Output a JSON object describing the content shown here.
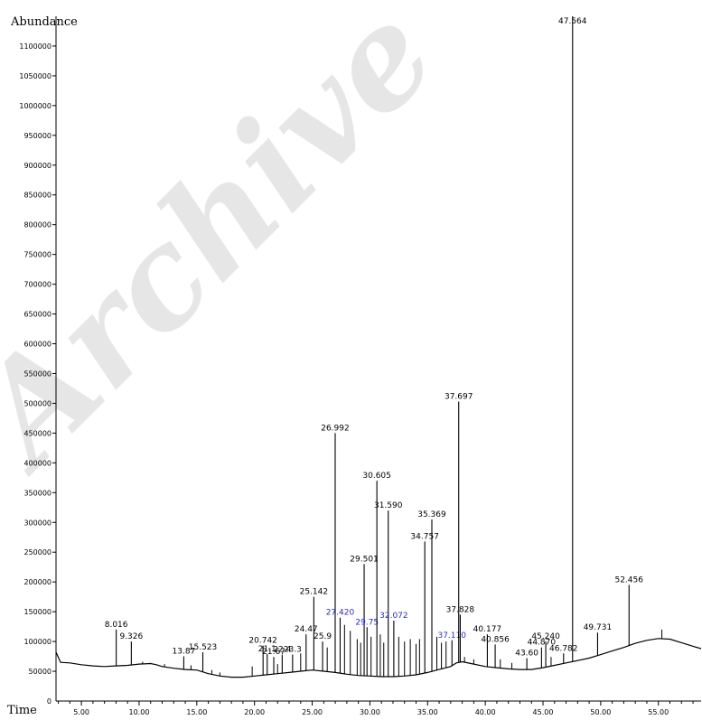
{
  "chart_data": {
    "type": "line",
    "ylabel": "Abundance",
    "xlabel": "Time",
    "xlim": [
      2.8,
      58.7
    ],
    "ylim": [
      0,
      1150000
    ],
    "y_ticks": [
      50000,
      100000,
      150000,
      200000,
      250000,
      300000,
      350000,
      400000,
      450000,
      500000,
      550000,
      600000,
      650000,
      700000,
      750000,
      800000,
      850000,
      900000,
      950000,
      1000000,
      1050000,
      1100000
    ],
    "y_tick_labels": [
      "50000",
      "100000",
      "150000",
      "200000",
      "250000",
      "300000",
      "350000",
      "400000",
      "450000",
      "500000",
      "550000",
      "600000",
      "650000",
      "700000",
      "750000",
      "800000",
      "850000",
      "900000",
      "950000",
      "1000000",
      "1050000",
      "1100000"
    ],
    "x_ticks": [
      5,
      10,
      15,
      20,
      25,
      30,
      35,
      40,
      45,
      50,
      55
    ],
    "x_tick_labels": [
      "5.00",
      "10.00",
      "15.00",
      "20.00",
      "25.00",
      "30.00",
      "35.00",
      "40.00",
      "45.00",
      "50.00",
      "55.00"
    ],
    "watermark": "Archive",
    "labeled_peaks": [
      {
        "x": 8.016,
        "y": 120000,
        "label": "8.016"
      },
      {
        "x": 9.326,
        "y": 100000,
        "label": "9.326"
      },
      {
        "x": 13.87,
        "y": 75000,
        "label": "13.87"
      },
      {
        "x": 15.523,
        "y": 82000,
        "label": "15.523"
      },
      {
        "x": 20.742,
        "y": 93000,
        "label": "20.742"
      },
      {
        "x": 21.1,
        "y": 79000,
        "label": "21.1"
      },
      {
        "x": 21.67,
        "y": 74000,
        "label": "21.67"
      },
      {
        "x": 22.4,
        "y": 78000,
        "label": "22.4"
      },
      {
        "x": 23.3,
        "y": 78000,
        "label": "23.3"
      },
      {
        "x": 24.47,
        "y": 112000,
        "label": "24.47"
      },
      {
        "x": 25.142,
        "y": 175000,
        "label": "25.142"
      },
      {
        "x": 25.9,
        "y": 100000,
        "label": "25.9"
      },
      {
        "x": 26.992,
        "y": 450000,
        "label": "26.992"
      },
      {
        "x": 27.42,
        "y": 140000,
        "label": "27.420"
      },
      {
        "x": 29.501,
        "y": 230000,
        "label": "29.501"
      },
      {
        "x": 29.75,
        "y": 124000,
        "label": "29.75"
      },
      {
        "x": 30.605,
        "y": 370000,
        "label": "30.605"
      },
      {
        "x": 31.59,
        "y": 320000,
        "label": "31.590"
      },
      {
        "x": 32.072,
        "y": 135000,
        "label": "32.072"
      },
      {
        "x": 34.757,
        "y": 268000,
        "label": "34.757"
      },
      {
        "x": 35.369,
        "y": 305000,
        "label": "35.369"
      },
      {
        "x": 37.11,
        "y": 102000,
        "label": "37.110"
      },
      {
        "x": 37.697,
        "y": 503000,
        "label": "37.697"
      },
      {
        "x": 37.828,
        "y": 145000,
        "label": "37.828"
      },
      {
        "x": 40.177,
        "y": 112000,
        "label": "40.177"
      },
      {
        "x": 40.856,
        "y": 95000,
        "label": "40.856"
      },
      {
        "x": 43.6,
        "y": 72000,
        "label": "43.60"
      },
      {
        "x": 44.87,
        "y": 90000,
        "label": "44.870"
      },
      {
        "x": 45.24,
        "y": 100000,
        "label": "45.240"
      },
      {
        "x": 46.782,
        "y": 80000,
        "label": "46.782"
      },
      {
        "x": 47.564,
        "y": 1150000,
        "label": "47.564"
      },
      {
        "x": 49.731,
        "y": 115000,
        "label": "49.731"
      },
      {
        "x": 52.456,
        "y": 195000,
        "label": "52.456"
      }
    ],
    "minor_peaks": [
      {
        "x": 10.3,
        "y": 66000
      },
      {
        "x": 11.0,
        "y": 64000
      },
      {
        "x": 12.2,
        "y": 62000
      },
      {
        "x": 14.5,
        "y": 60000
      },
      {
        "x": 16.3,
        "y": 52000
      },
      {
        "x": 17.0,
        "y": 48000
      },
      {
        "x": 19.8,
        "y": 58000
      },
      {
        "x": 22.0,
        "y": 62000
      },
      {
        "x": 24.0,
        "y": 80000
      },
      {
        "x": 26.3,
        "y": 90000
      },
      {
        "x": 27.8,
        "y": 128000
      },
      {
        "x": 28.3,
        "y": 118000
      },
      {
        "x": 28.9,
        "y": 104000
      },
      {
        "x": 29.2,
        "y": 98000
      },
      {
        "x": 30.1,
        "y": 108000
      },
      {
        "x": 30.9,
        "y": 112000
      },
      {
        "x": 31.2,
        "y": 98000
      },
      {
        "x": 32.5,
        "y": 108000
      },
      {
        "x": 33.0,
        "y": 100000
      },
      {
        "x": 33.5,
        "y": 104000
      },
      {
        "x": 34.0,
        "y": 96000
      },
      {
        "x": 34.3,
        "y": 104000
      },
      {
        "x": 35.8,
        "y": 108000
      },
      {
        "x": 36.2,
        "y": 98000
      },
      {
        "x": 36.6,
        "y": 100000
      },
      {
        "x": 38.2,
        "y": 74000
      },
      {
        "x": 39.0,
        "y": 70000
      },
      {
        "x": 41.3,
        "y": 70000
      },
      {
        "x": 42.3,
        "y": 64000
      },
      {
        "x": 45.7,
        "y": 74000
      },
      {
        "x": 51.5,
        "y": 88000
      },
      {
        "x": 55.3,
        "y": 120000
      }
    ],
    "baseline": [
      [
        2.8,
        82000
      ],
      [
        3.2,
        65000
      ],
      [
        4.0,
        64000
      ],
      [
        5.0,
        61000
      ],
      [
        6.0,
        59000
      ],
      [
        7.0,
        58000
      ],
      [
        8.0,
        59000
      ],
      [
        9.0,
        60000
      ],
      [
        10.0,
        62000
      ],
      [
        11.0,
        63000
      ],
      [
        11.5,
        61000
      ],
      [
        12.0,
        58000
      ],
      [
        13.0,
        55000
      ],
      [
        14.0,
        53000
      ],
      [
        15.0,
        52000
      ],
      [
        16.0,
        46000
      ],
      [
        17.0,
        42000
      ],
      [
        18.0,
        40000
      ],
      [
        19.0,
        40000
      ],
      [
        20.0,
        42000
      ],
      [
        21.0,
        44000
      ],
      [
        22.0,
        46000
      ],
      [
        23.0,
        48000
      ],
      [
        24.0,
        50000
      ],
      [
        25.0,
        52000
      ],
      [
        26.0,
        50000
      ],
      [
        27.0,
        48000
      ],
      [
        28.0,
        45000
      ],
      [
        29.0,
        43000
      ],
      [
        30.0,
        42000
      ],
      [
        31.0,
        41000
      ],
      [
        32.0,
        41000
      ],
      [
        33.0,
        42000
      ],
      [
        34.0,
        44000
      ],
      [
        35.0,
        48000
      ],
      [
        36.0,
        53000
      ],
      [
        37.0,
        58000
      ],
      [
        37.5,
        64000
      ],
      [
        38.0,
        66000
      ],
      [
        39.0,
        62000
      ],
      [
        40.0,
        58000
      ],
      [
        41.0,
        56000
      ],
      [
        42.0,
        54000
      ],
      [
        43.0,
        53000
      ],
      [
        44.0,
        53000
      ],
      [
        45.0,
        56000
      ],
      [
        46.0,
        60000
      ],
      [
        47.0,
        64000
      ],
      [
        48.0,
        68000
      ],
      [
        49.0,
        72000
      ],
      [
        50.0,
        78000
      ],
      [
        51.0,
        84000
      ],
      [
        52.0,
        90000
      ],
      [
        53.0,
        97000
      ],
      [
        54.0,
        102000
      ],
      [
        55.0,
        105000
      ],
      [
        56.0,
        104000
      ],
      [
        57.0,
        98000
      ],
      [
        58.0,
        92000
      ],
      [
        58.7,
        88000
      ]
    ]
  }
}
